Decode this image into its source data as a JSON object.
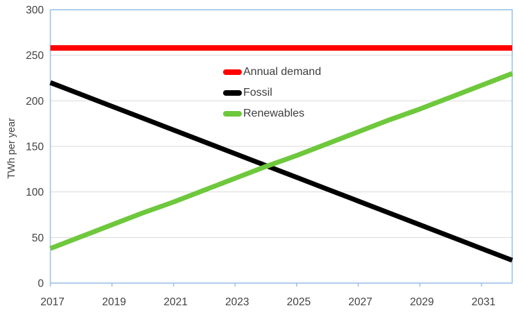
{
  "chart_data": {
    "type": "line",
    "title": "",
    "ylabel": "TWh per year",
    "xlabel": "",
    "ylim": [
      0,
      300
    ],
    "xlim": [
      2017,
      2032
    ],
    "y_ticks": [
      0,
      50,
      100,
      150,
      200,
      250,
      300
    ],
    "x_tick_years": [
      2017,
      2019,
      2021,
      2023,
      2025,
      2027,
      2029,
      2031
    ],
    "x_tick_labels": [
      "2017",
      "2019",
      "2021",
      "2023",
      "2025",
      "2027",
      "2029",
      "2031"
    ],
    "grid": "horizontal",
    "legend_position": "inside-top-center",
    "axis_color": "#9dc3e6",
    "grid_color": "#d9d9d9",
    "text_color": "#424242",
    "x": [
      2017,
      2018,
      2019,
      2020,
      2021,
      2022,
      2023,
      2024,
      2025,
      2026,
      2027,
      2028,
      2029,
      2030,
      2031,
      2032
    ],
    "series": [
      {
        "name": "Annual demand",
        "color": "#ff0000",
        "values": [
          258,
          258,
          258,
          258,
          258,
          258,
          258,
          258,
          258,
          258,
          258,
          258,
          258,
          258,
          258,
          258
        ]
      },
      {
        "name": "Fossil",
        "color": "#000000",
        "values": [
          220,
          207,
          194,
          181,
          168,
          155,
          142,
          129,
          116,
          103,
          90,
          77,
          64,
          51,
          38,
          25
        ]
      },
      {
        "name": "Renewables",
        "color": "#6ec83c",
        "values": [
          38,
          51,
          64,
          77,
          89,
          102,
          115,
          128,
          140,
          153,
          166,
          179,
          191,
          204,
          217,
          230
        ]
      }
    ]
  }
}
